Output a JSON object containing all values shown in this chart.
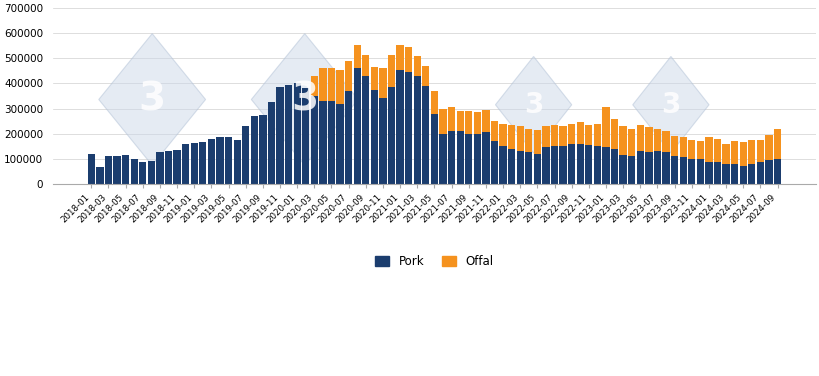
{
  "pork_color": "#1b3d6e",
  "offal_color": "#f5921e",
  "background_color": "#ffffff",
  "grid_color": "#d0d0d0",
  "yticks": [
    0,
    100000,
    200000,
    300000,
    400000,
    500000,
    600000,
    700000
  ],
  "ylim": [
    0,
    700000
  ],
  "legend_pork": "Pork",
  "legend_offal": "Offal",
  "pork_data": [
    118000,
    68000,
    112000,
    112000,
    115000,
    100000,
    88000,
    92000,
    127000,
    130000,
    135000,
    160000,
    163000,
    165000,
    180000,
    185000,
    185000,
    175000,
    230000,
    270000,
    275000,
    325000,
    385000,
    395000,
    400000,
    380000,
    350000,
    330000,
    330000,
    320000,
    370000,
    460000,
    430000,
    375000,
    340000,
    385000,
    455000,
    445000,
    430000,
    390000,
    280000,
    200000,
    210000,
    210000,
    200000,
    200000,
    205000,
    170000,
    150000,
    140000,
    130000,
    125000,
    120000,
    145000,
    150000,
    150000,
    160000,
    160000,
    155000,
    150000,
    145000,
    140000,
    115000,
    110000,
    130000,
    125000,
    130000,
    125000,
    110000,
    105000,
    100000,
    100000,
    85000,
    85000,
    80000,
    80000,
    70000,
    80000,
    85000,
    95000,
    100000
  ],
  "offal_data": [
    0,
    0,
    0,
    0,
    0,
    0,
    0,
    0,
    0,
    0,
    0,
    0,
    0,
    0,
    0,
    0,
    0,
    0,
    0,
    0,
    0,
    0,
    0,
    0,
    0,
    0,
    80000,
    130000,
    130000,
    135000,
    120000,
    95000,
    85000,
    90000,
    120000,
    130000,
    100000,
    100000,
    80000,
    80000,
    90000,
    100000,
    95000,
    80000,
    90000,
    85000,
    90000,
    80000,
    90000,
    95000,
    100000,
    95000,
    95000,
    85000,
    85000,
    80000,
    80000,
    85000,
    80000,
    90000,
    160000,
    120000,
    115000,
    110000,
    105000,
    100000,
    90000,
    85000,
    80000,
    80000,
    75000,
    70000,
    100000,
    95000,
    80000,
    90000,
    95000,
    95000,
    90000,
    100000,
    120000
  ],
  "xtick_labels": [
    "2018-01",
    "2018-03",
    "2018-05",
    "2018-07",
    "2018-09",
    "2018-11",
    "2019-01",
    "2019-03",
    "2019-05",
    "2019-07",
    "2019-09",
    "2019-11",
    "2020-01",
    "2020-03",
    "2020-05",
    "2020-07",
    "2020-09",
    "2020-11",
    "2021-01",
    "2021-03",
    "2021-05",
    "2021-07",
    "2021-09",
    "2021-11",
    "2022-01",
    "2022-03",
    "2022-05",
    "2022-07",
    "2022-09",
    "2022-11",
    "2023-01",
    "2023-03",
    "2023-05",
    "2023-07",
    "2023-09",
    "2023-11",
    "2024-01",
    "2024-03",
    "2024-05",
    "2024-07",
    "2024-09"
  ]
}
